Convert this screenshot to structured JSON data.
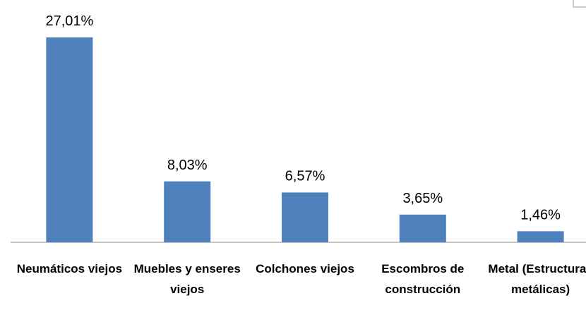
{
  "chart_data": {
    "type": "bar",
    "categories": [
      "Neumáticos viejos",
      "Muebles y enseres viejos",
      "Colchones viejos",
      "Escombros de construcción",
      "Metal (Estructuras metálicas)"
    ],
    "values": [
      27.01,
      8.03,
      6.57,
      3.65,
      1.46
    ],
    "value_labels": [
      "27,01%",
      "8,03%",
      "6,57%",
      "3,65%",
      "1,46%"
    ],
    "color": "#4f81bd"
  }
}
